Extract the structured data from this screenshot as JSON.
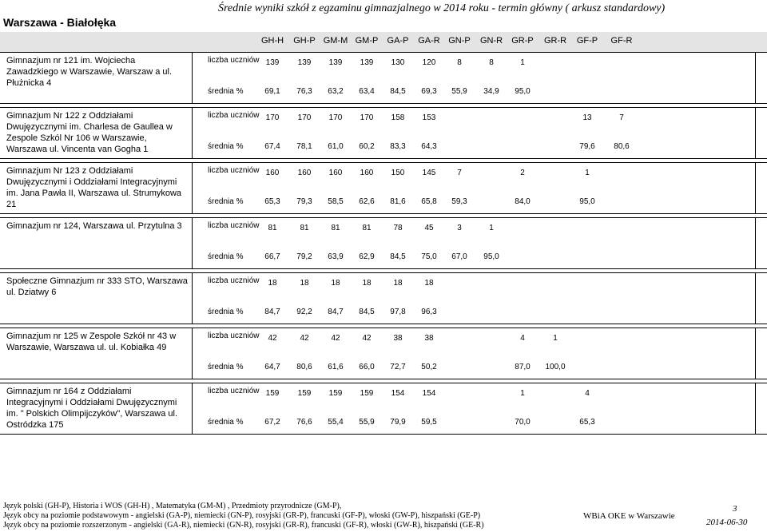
{
  "header": {
    "location": "Warszawa - Białołęka",
    "title": "Średnie wyniki szkół z egzaminu gimnazjalnego w 2014 roku - termin główny ( arkusz standardowy)"
  },
  "columns": [
    "GH-H",
    "GH-P",
    "GM-M",
    "GM-P",
    "GA-P",
    "GA-R",
    "GN-P",
    "GN-R",
    "GR-P",
    "GR-R",
    "GF-P",
    "GF-R"
  ],
  "row_labels": {
    "count": "liczba uczniów",
    "mean": "średnia %"
  },
  "schools": [
    {
      "name": "Gimnazjum nr 121 im. Wojciecha Zawadzkiego w Warszawie, Warszaw a ul. Płużnicka 4",
      "count": [
        "139",
        "139",
        "139",
        "139",
        "130",
        "120",
        "8",
        "8",
        "1",
        "",
        "",
        ""
      ],
      "mean": [
        "69,1",
        "76,3",
        "63,2",
        "63,4",
        "84,5",
        "69,3",
        "55,9",
        "34,9",
        "95,0",
        "",
        "",
        ""
      ]
    },
    {
      "name": "Gimnazjum Nr 122 z Oddziałami Dwujęzycznymi im. Charlesa de Gaullea w Zespole Szkól Nr 106 w Warszawie, Warszawa ul. Vincenta van Gogha 1",
      "count": [
        "170",
        "170",
        "170",
        "170",
        "158",
        "153",
        "",
        "",
        "",
        "",
        "13",
        "7"
      ],
      "mean": [
        "67,4",
        "78,1",
        "61,0",
        "60,2",
        "83,3",
        "64,3",
        "",
        "",
        "",
        "",
        "79,6",
        "80,6"
      ]
    },
    {
      "name": "Gimnazjum Nr 123 z Oddziałami Dwujęzycznymi i Oddziałami  Integracyjnymi im. Jana Pawła II, Warszawa ul. Strumykowa 21",
      "count": [
        "160",
        "160",
        "160",
        "160",
        "150",
        "145",
        "7",
        "",
        "2",
        "",
        "1",
        ""
      ],
      "mean": [
        "65,3",
        "79,3",
        "58,5",
        "62,6",
        "81,6",
        "65,8",
        "59,3",
        "",
        "84,0",
        "",
        "95,0",
        ""
      ]
    },
    {
      "name": "Gimnazjum nr 124, Warszawa ul. Przytulna 3",
      "count": [
        "81",
        "81",
        "81",
        "81",
        "78",
        "45",
        "3",
        "1",
        "",
        "",
        "",
        ""
      ],
      "mean": [
        "66,7",
        "79,2",
        "63,9",
        "62,9",
        "84,5",
        "75,0",
        "67,0",
        "95,0",
        "",
        "",
        "",
        ""
      ]
    },
    {
      "name": "Społeczne Gimnazjum nr 333 STO, Warszawa ul. Dziatwy 6",
      "count": [
        "18",
        "18",
        "18",
        "18",
        "18",
        "18",
        "",
        "",
        "",
        "",
        "",
        ""
      ],
      "mean": [
        "84,7",
        "92,2",
        "84,7",
        "84,5",
        "97,8",
        "96,3",
        "",
        "",
        "",
        "",
        "",
        ""
      ]
    },
    {
      "name": "Gimnazjum nr 125 w Zespole Szkół nr 43 w Warszawie, Warszawa ul. ul. Kobiałka 49",
      "count": [
        "42",
        "42",
        "42",
        "42",
        "38",
        "38",
        "",
        "",
        "4",
        "1",
        "",
        ""
      ],
      "mean": [
        "64,7",
        "80,6",
        "61,6",
        "66,0",
        "72,7",
        "50,2",
        "",
        "",
        "87,0",
        "100,0",
        "",
        ""
      ]
    },
    {
      "name": "Gimnazjum nr 164 z Oddziałami Integracyjnymi i Oddziałami Dwujęzycznymi im. \" Polskich Olimpijczyków\", Warszawa ul. Ostródzka 175",
      "count": [
        "159",
        "159",
        "159",
        "159",
        "154",
        "154",
        "",
        "",
        "1",
        "",
        "4",
        ""
      ],
      "mean": [
        "67,2",
        "76,6",
        "55,4",
        "55,9",
        "79,9",
        "59,5",
        "",
        "",
        "70,0",
        "",
        "65,3",
        ""
      ]
    }
  ],
  "footer": {
    "lines": [
      "Język polski (GH-P), Historia i WOS (GH-H) , Matematyka (GM-M) , Przedmioty przyrodnicze (GM-P),",
      "Język obcy na poziomie podstawowym - angielski (GA-P), niemiecki (GN-P), rosyjski (GR-P), francuski (GF-P), włoski (GW-P), hiszpański (GE-P)",
      "Język obcy na poziomie rozszerzonym - angielski (GA-R), niemiecki (GN-R), rosyjski (GR-R), francuski (GF-R), włoski (GW-R), hiszpański (GE-R)"
    ],
    "publisher": "WBiA OKE w Warszawie",
    "page": "3",
    "date": "2014-06-30"
  }
}
